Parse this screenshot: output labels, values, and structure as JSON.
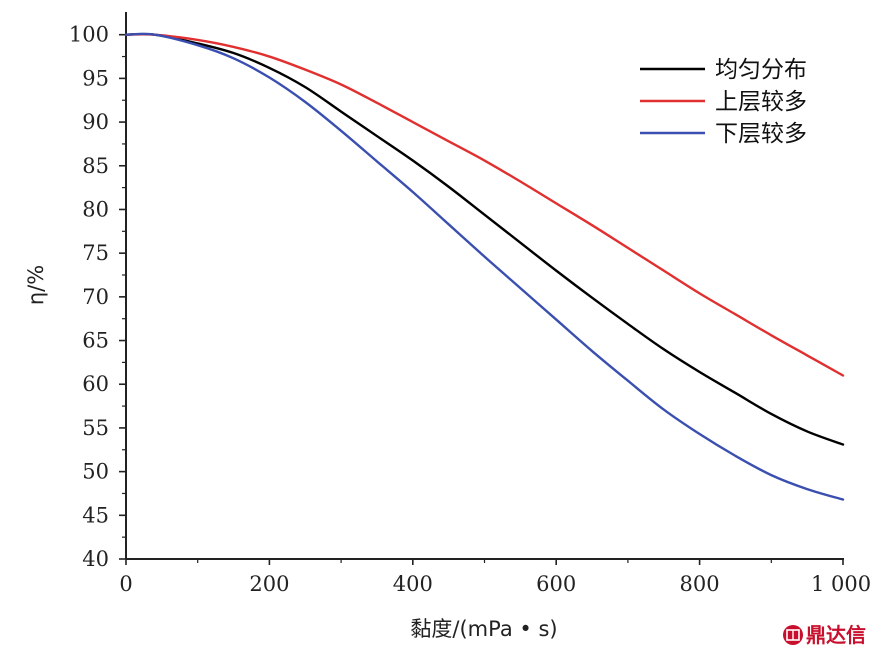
{
  "chart_data": {
    "type": "line",
    "xlabel": "黏度/(mPa • s)",
    "ylabel": "η/%",
    "xlim": [
      0,
      1000
    ],
    "ylim": [
      40,
      100
    ],
    "x_ticks": [
      {
        "value": 0,
        "label": "0"
      },
      {
        "value": 200,
        "label": "200"
      },
      {
        "value": 400,
        "label": "400"
      },
      {
        "value": 600,
        "label": "600"
      },
      {
        "value": 800,
        "label": "800"
      },
      {
        "value": 1000,
        "label": "1 000"
      }
    ],
    "y_ticks": [
      {
        "value": 40,
        "label": "40"
      },
      {
        "value": 45,
        "label": "45"
      },
      {
        "value": 50,
        "label": "50"
      },
      {
        "value": 55,
        "label": "55"
      },
      {
        "value": 60,
        "label": "60"
      },
      {
        "value": 65,
        "label": "65"
      },
      {
        "value": 70,
        "label": "70"
      },
      {
        "value": 75,
        "label": "75"
      },
      {
        "value": 80,
        "label": "80"
      },
      {
        "value": 85,
        "label": "85"
      },
      {
        "value": 90,
        "label": "90"
      },
      {
        "value": 95,
        "label": "95"
      },
      {
        "value": 100,
        "label": "100"
      }
    ],
    "grid": false,
    "legend_position": "top-right",
    "series": [
      {
        "name": "均匀分布",
        "color": "#000000",
        "x": [
          0,
          40,
          100,
          150,
          200,
          250,
          300,
          350,
          400,
          450,
          500,
          550,
          600,
          650,
          700,
          750,
          800,
          850,
          900,
          950,
          1000
        ],
        "y": [
          100,
          100,
          99.0,
          97.9,
          96.2,
          94.0,
          91.2,
          88.4,
          85.6,
          82.6,
          79.4,
          76.2,
          73.0,
          69.9,
          66.9,
          64.0,
          61.4,
          59.0,
          56.6,
          54.6,
          53.1
        ]
      },
      {
        "name": "上层较多",
        "color": "#e03030",
        "x": [
          0,
          40,
          100,
          150,
          200,
          250,
          300,
          350,
          400,
          450,
          500,
          550,
          600,
          650,
          700,
          750,
          800,
          850,
          900,
          950,
          1000
        ],
        "y": [
          100,
          100,
          99.4,
          98.6,
          97.5,
          96.0,
          94.3,
          92.2,
          90.0,
          87.8,
          85.6,
          83.2,
          80.7,
          78.2,
          75.6,
          73.0,
          70.4,
          68.0,
          65.6,
          63.3,
          61.0
        ]
      },
      {
        "name": "下层较多",
        "color": "#3a4fb0",
        "x": [
          0,
          40,
          100,
          150,
          200,
          250,
          300,
          350,
          400,
          450,
          500,
          550,
          600,
          650,
          700,
          750,
          800,
          850,
          900,
          950,
          1000
        ],
        "y": [
          100,
          100,
          98.8,
          97.3,
          95.1,
          92.3,
          89.0,
          85.5,
          82.0,
          78.3,
          74.6,
          71.0,
          67.4,
          63.8,
          60.4,
          57.1,
          54.3,
          51.8,
          49.6,
          48.0,
          46.8
        ]
      }
    ]
  },
  "watermark": {
    "text": "鼎达信",
    "color": "#c8102e",
    "icon": "seal-icon"
  }
}
